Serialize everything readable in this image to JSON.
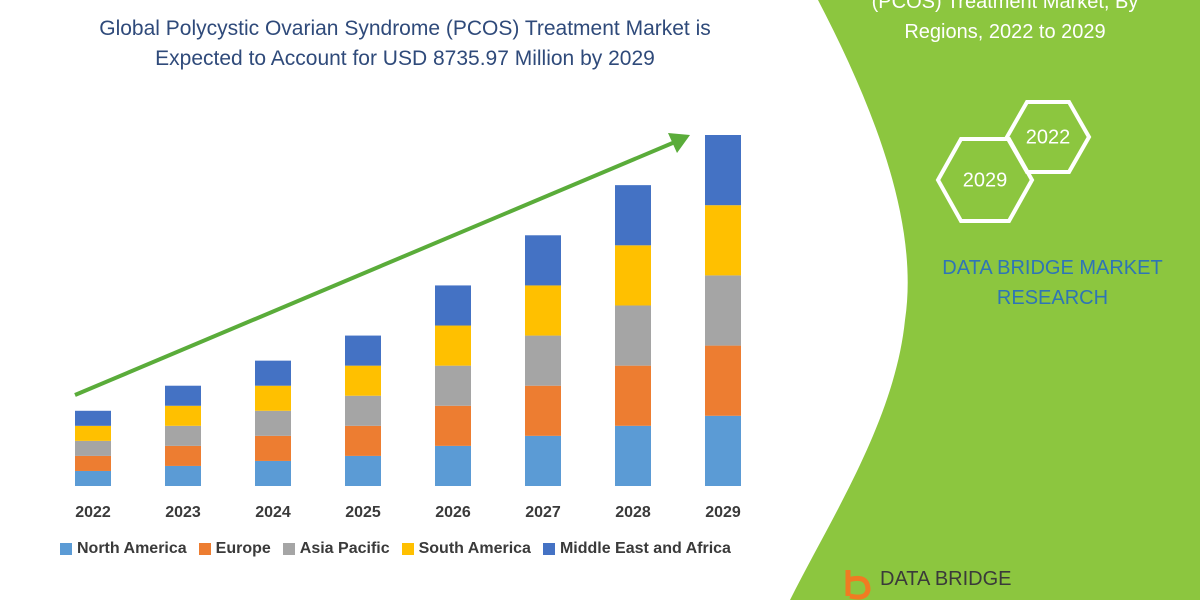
{
  "side_title": "(PCOS) Treatment Market, By Regions, 2022 to 2029",
  "hexagons": [
    "2022",
    "2029"
  ],
  "brand": "DATA BRIDGE MARKET RESEARCH",
  "logo": "DATA BRIDGE",
  "chart_data": {
    "type": "bar",
    "stacked": true,
    "title": "Global Polycystic Ovarian Syndrome (PCOS) Treatment Market is Expected to Account for USD 8735.97 Million by 2029",
    "categories": [
      "2022",
      "2023",
      "2024",
      "2025",
      "2026",
      "2027",
      "2028",
      "2029"
    ],
    "series": [
      {
        "name": "North America",
        "color": "#5b9bd5",
        "values": [
          15,
          20,
          25,
          30,
          40,
          50,
          60,
          70
        ]
      },
      {
        "name": "Europe",
        "color": "#ed7d31",
        "values": [
          15,
          20,
          25,
          30,
          40,
          50,
          60,
          70
        ]
      },
      {
        "name": "Asia Pacific",
        "color": "#a5a5a5",
        "values": [
          15,
          20,
          25,
          30,
          40,
          50,
          60,
          70
        ]
      },
      {
        "name": "South America",
        "color": "#ffc000",
        "values": [
          15,
          20,
          25,
          30,
          40,
          50,
          60,
          70
        ]
      },
      {
        "name": "Middle East and Africa",
        "color": "#4472c4",
        "values": [
          15,
          20,
          25,
          30,
          40,
          50,
          60,
          70
        ]
      }
    ]
  }
}
